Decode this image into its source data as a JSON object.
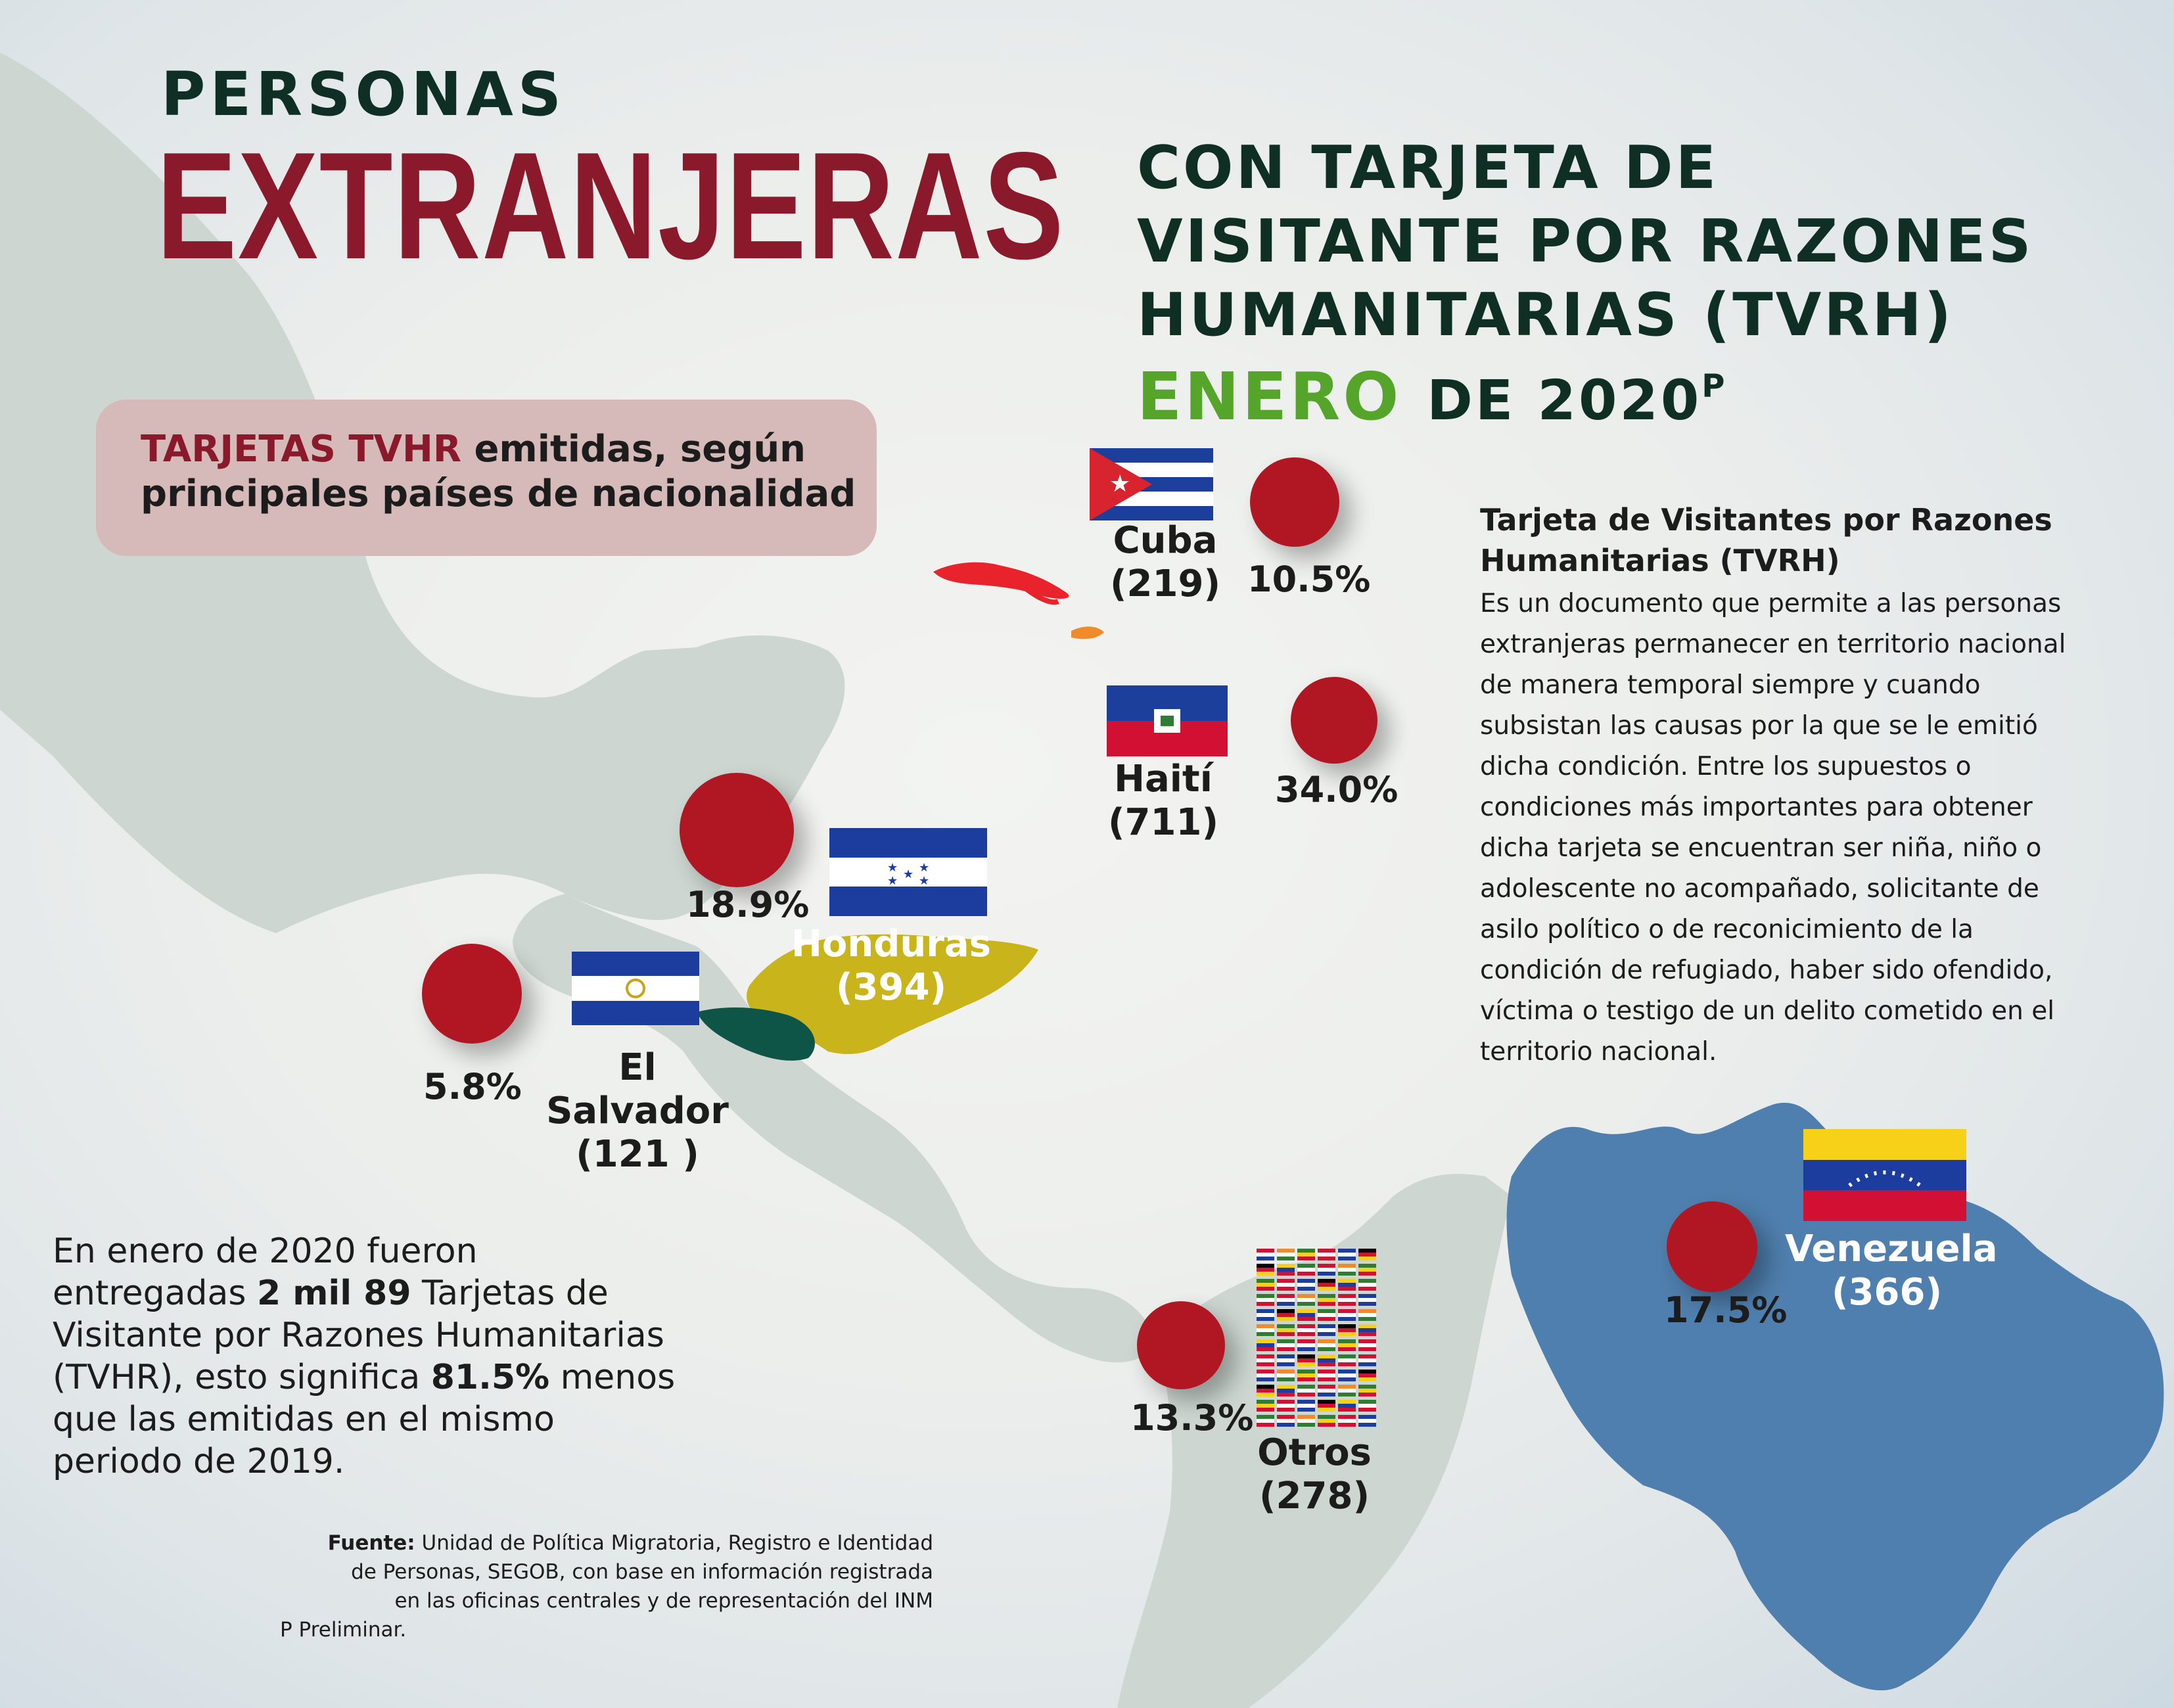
{
  "header": {
    "line1": "PERSONAS",
    "line2": "EXTRANJERAS",
    "subtitle_lines": [
      "CON TARJETA DE",
      "VISITANTE POR RAZONES",
      "HUMANITARIAS (TVRH)"
    ],
    "month": "ENERO",
    "year_text": "DE 2020",
    "superscript": "P"
  },
  "subtitle_box": {
    "highlight": "TARJETAS TVHR",
    "line1_rest": " emitidas, según",
    "line2": "principales países de nacionalidad"
  },
  "countries": [
    {
      "key": "cuba",
      "name": "Cuba",
      "count": "(219)",
      "percent": "10.5%"
    },
    {
      "key": "haiti",
      "name": "Haití",
      "count": "(711)",
      "percent": "34.0%"
    },
    {
      "key": "honduras",
      "name": "Honduras",
      "count": "(394)",
      "percent": "18.9%"
    },
    {
      "key": "el_salvador",
      "name": "El Salvador",
      "count": "(121 )",
      "percent": "5.8%"
    },
    {
      "key": "otros",
      "name": "Otros",
      "count": "(278)",
      "percent": "13.3%"
    },
    {
      "key": "venezuela",
      "name": "Venezuela",
      "count": "(366)",
      "percent": "17.5%"
    }
  ],
  "info": {
    "title_line1": "Tarjeta de Visitantes por Razones",
    "title_line2": "Humanitarias (TVRH)",
    "body_lines": [
      "Es un documento que permite a las personas",
      "extranjeras permanecer en territorio nacional",
      "de manera temporal siempre y cuando",
      "subsistan las causas por la que se le emitió",
      "dicha condición. Entre los supuestos o",
      "condiciones más importantes para obtener",
      "dicha tarjeta se encuentran ser niña, niño o",
      "adolescente no acompañado, solicitante de",
      "asilo político o de reconicimiento de la",
      "condición de refugiado, haber sido ofendido,",
      "víctima o testigo de un delito cometido en el",
      "territorio nacional."
    ]
  },
  "summary": {
    "p1": "En enero de 2020 fueron",
    "p2_pre": "entregadas ",
    "p2_bold": "2 mil 89",
    "p2_post": " Tarjetas de",
    "p3": "Visitante por Razones Humanitarias",
    "p4_pre": "(TVHR), esto significa ",
    "p4_bold": "81.5%",
    "p4_post": " menos",
    "p5": "que las emitidas en el mismo",
    "p6": "periodo de 2019."
  },
  "source": {
    "label": "Fuente:",
    "l1": " Unidad de Política Migratoria, Registro e Identidad",
    "l2": "de Personas, SEGOB, con base en información registrada",
    "l3": "en las oficinas centrales y de representación del INM",
    "l4": "P Preliminar."
  },
  "colors": {
    "title_dark_green": "#0f2e24",
    "title_maroon": "#8a1a2b",
    "month_green": "#55a52a",
    "circle_red": "#b01723",
    "honduras_yellow": "#c9b41b",
    "el_salvador_teal": "#0e5548",
    "venezuela_blue": "#4f7fae",
    "land_gray": "#cfd7d2"
  }
}
